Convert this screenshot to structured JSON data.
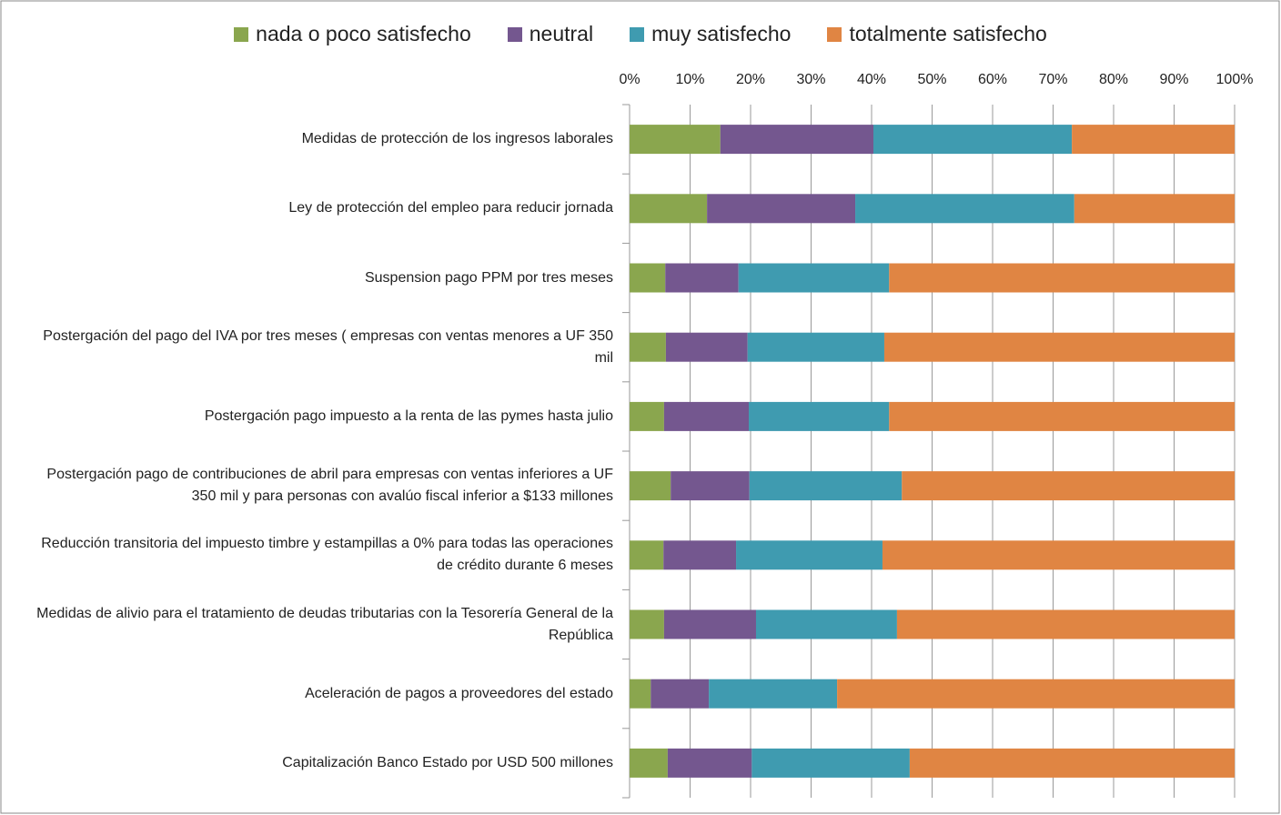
{
  "chart_data": {
    "type": "stacked-bar-horizontal",
    "categories": [
      "Medidas de protección de los ingresos laborales",
      "Ley de protección del empleo para reducir jornada",
      "Suspension pago PPM por tres meses",
      "Postergación del pago del IVA por tres meses ( empresas con ventas menores a UF 350 mil",
      "Postergación pago impuesto a la renta de las pymes hasta julio",
      "Postergación pago de contribuciones de abril para empresas con ventas inferiores a UF 350 mil y para personas con avalúo fiscal inferior a $133 millones",
      "Reducción transitoria del impuesto timbre y estampillas a 0% para todas las operaciones de crédito durante 6 meses",
      "Medidas de alivio para el tratamiento de deudas tributarias con la Tesorería General de la República",
      "Aceleración de pagos a proveedores del estado",
      "Capitalización Banco Estado por USD 500 millones"
    ],
    "series": [
      {
        "name": "nada o poco satisfecho",
        "color": "#8aa64e",
        "values": [
          15.0,
          12.8,
          5.9,
          6.0,
          5.7,
          6.8,
          5.6,
          5.7,
          3.5,
          6.3
        ]
      },
      {
        "name": "neutral",
        "color": "#74578f",
        "values": [
          25.3,
          24.5,
          12.1,
          13.5,
          14.0,
          13.0,
          12.0,
          15.2,
          9.6,
          13.9
        ]
      },
      {
        "name": "muy satisfecho",
        "color": "#3f9bb0",
        "values": [
          32.8,
          36.2,
          24.9,
          22.6,
          23.2,
          25.2,
          24.2,
          23.3,
          21.2,
          26.1
        ]
      },
      {
        "name": "totalmente satisfecho",
        "color": "#e08543",
        "values": [
          26.9,
          26.5,
          57.1,
          57.9,
          57.1,
          55.0,
          58.2,
          55.8,
          65.7,
          53.7
        ]
      }
    ],
    "xlim": [
      0,
      100
    ],
    "xticks": [
      {
        "value": 0,
        "label": "0%"
      },
      {
        "value": 10,
        "label": "10%"
      },
      {
        "value": 20,
        "label": "20%"
      },
      {
        "value": 30,
        "label": "30%"
      },
      {
        "value": 40,
        "label": "40%"
      },
      {
        "value": 50,
        "label": "50%"
      },
      {
        "value": 60,
        "label": "60%"
      },
      {
        "value": 70,
        "label": "70%"
      },
      {
        "value": 80,
        "label": "80%"
      },
      {
        "value": 90,
        "label": "90%"
      },
      {
        "value": 100,
        "label": "100%"
      }
    ],
    "grid": true,
    "legend": "top"
  }
}
